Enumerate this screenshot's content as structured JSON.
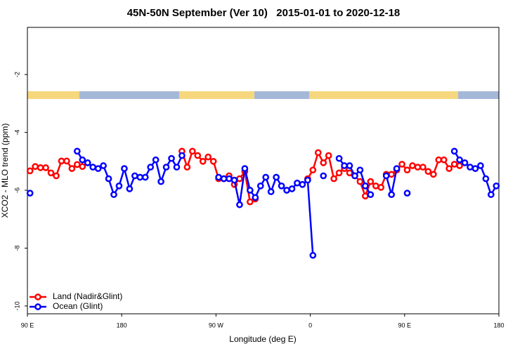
{
  "chart_data": {
    "type": "line",
    "title": "45N-50N September (Ver 10)   2015-01-01 to 2020-12-18",
    "x_label": "Longitude (deg E)",
    "y_label": "XCO2 - MLO trend (ppm)",
    "x": [
      92.5,
      97.5,
      102.5,
      107.5,
      112.5,
      117.5,
      122.5,
      127.5,
      132.5,
      137.5,
      142.5,
      147.5,
      152.5,
      157.5,
      162.5,
      167.5,
      172.5,
      177.5,
      182.5,
      187.5,
      192.5,
      197.5,
      202.5,
      207.5,
      212.5,
      217.5,
      222.5,
      227.5,
      232.5,
      237.5,
      242.5,
      247.5,
      252.5,
      257.5,
      262.5,
      267.5,
      272.5,
      277.5,
      282.5,
      287.5,
      292.5,
      297.5,
      302.5,
      307.5,
      312.5,
      317.5,
      322.5,
      327.5,
      332.5,
      337.5,
      342.5,
      347.5,
      352.5,
      357.5,
      362.5,
      367.5,
      372.5,
      377.5,
      382.5,
      387.5,
      392.5,
      397.5,
      402.5,
      407.5,
      412.5,
      417.5,
      422.5,
      427.5,
      432.5,
      437.5,
      442.5,
      447.5,
      452.5,
      457.5,
      462.5,
      467.5,
      472.5,
      477.5,
      482.5,
      487.5,
      492.5,
      497.5,
      502.5,
      507.5,
      512.5,
      517.5,
      522.5,
      527.5,
      532.5,
      537.5
    ],
    "series": [
      {
        "name": "Land (Nadir&Glint)",
        "color": "#ff0000",
        "values": [
          -5.33,
          -5.18,
          -5.22,
          -5.22,
          -5.4,
          -5.5,
          -4.99,
          -4.99,
          -5.25,
          -5.11,
          -5.18,
          null,
          null,
          null,
          null,
          null,
          null,
          null,
          null,
          null,
          null,
          null,
          null,
          null,
          null,
          null,
          null,
          null,
          null,
          -4.65,
          -5.2,
          -4.65,
          -4.8,
          -5.0,
          -4.85,
          -5.0,
          -5.6,
          -5.6,
          -5.5,
          -5.8,
          -5.6,
          -5.35,
          -6.4,
          -6.3,
          null,
          null,
          null,
          null,
          null,
          null,
          null,
          null,
          null,
          -5.6,
          -5.3,
          -4.7,
          -5.05,
          -4.8,
          -5.6,
          -5.4,
          -5.25,
          -5.4,
          -5.5,
          -5.7,
          -6.2,
          -5.7,
          -5.85,
          -5.9,
          -5.45,
          -5.45,
          -5.3,
          -5.1,
          -5.3,
          -5.15,
          -5.2,
          -5.2,
          -5.35,
          -5.45,
          -4.95,
          -4.95,
          -5.25,
          -5.1,
          -5.15,
          null,
          null,
          null,
          null,
          null,
          null,
          null
        ]
      },
      {
        "name": "Ocean (Glint)",
        "color": "#0000ff",
        "values": [
          -6.1,
          null,
          null,
          null,
          null,
          null,
          null,
          null,
          null,
          -4.65,
          -4.95,
          -5.05,
          -5.2,
          -5.25,
          -5.15,
          -5.6,
          -6.15,
          -5.85,
          -5.25,
          -5.95,
          -5.5,
          -5.55,
          -5.55,
          -5.2,
          -4.95,
          -5.7,
          -5.2,
          -4.9,
          -5.2,
          -4.8,
          null,
          null,
          null,
          null,
          null,
          null,
          -5.55,
          -5.6,
          -5.6,
          -5.65,
          -6.5,
          -5.25,
          -6.0,
          -6.25,
          -5.85,
          -5.55,
          -6.05,
          -5.55,
          -5.85,
          -6.0,
          -5.95,
          -5.75,
          -5.8,
          -5.65,
          -8.25,
          null,
          -5.5,
          null,
          null,
          -4.9,
          -5.15,
          -5.15,
          -5.5,
          -5.3,
          -5.85,
          -6.15,
          null,
          null,
          -5.5,
          -6.15,
          -5.25,
          null,
          -6.1,
          null,
          null,
          null,
          null,
          null,
          null,
          null,
          null,
          -4.65,
          -4.95,
          -5.05,
          -5.2,
          -5.25,
          -5.15,
          -5.6,
          -6.15,
          -5.85
        ]
      }
    ],
    "xlim": [
      90,
      540
    ],
    "xticks": [
      {
        "value": 90,
        "label": "90 E"
      },
      180,
      {
        "value": 270,
        "label": "90 W"
      },
      {
        "value": 360,
        "label": "0"
      },
      {
        "value": 450,
        "label": "90 E"
      },
      {
        "value": 540,
        "label": "180"
      }
    ],
    "ylim": [
      -10.27,
      -0.37
    ],
    "yticks": [
      -10,
      -8,
      -6,
      -4,
      -2
    ],
    "legend": "bottomleft"
  }
}
